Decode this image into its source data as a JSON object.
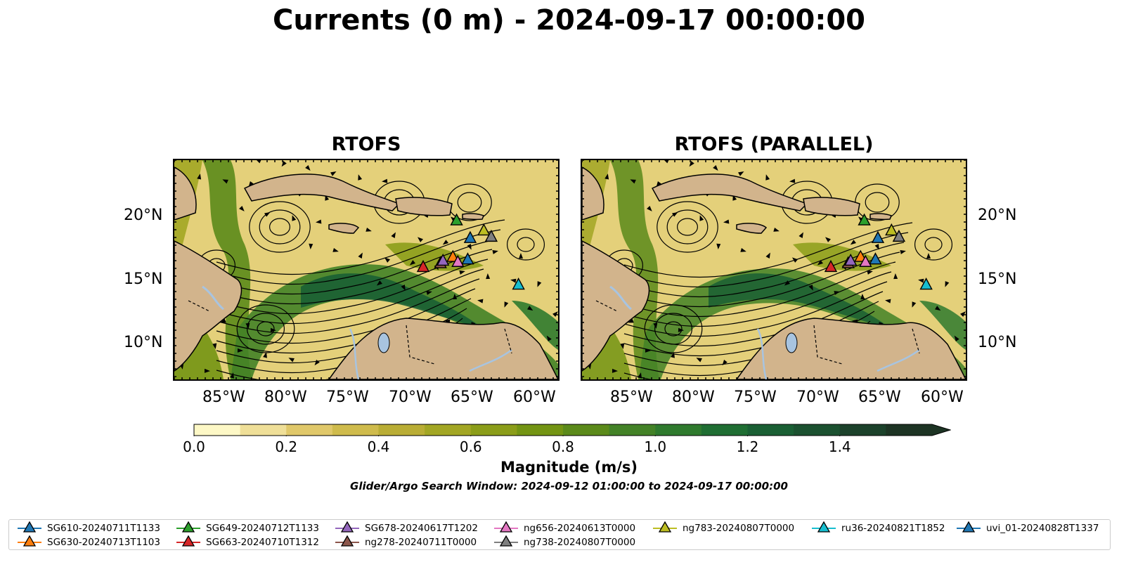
{
  "title": "Currents (0 m) - 2024-09-17 00:00:00",
  "panels": [
    {
      "title": "RTOFS"
    },
    {
      "title": "RTOFS (PARALLEL)"
    }
  ],
  "axes": {
    "lat_labels": [
      "20°N",
      "15°N",
      "10°N"
    ],
    "lon_labels": [
      "85°W",
      "80°W",
      "75°W",
      "70°W",
      "65°W",
      "60°W"
    ]
  },
  "colorbar": {
    "label": "Magnitude (m/s)",
    "ticks": [
      "0.0",
      "0.2",
      "0.4",
      "0.6",
      "0.8",
      "1.0",
      "1.2",
      "1.4"
    ],
    "range": [
      0.0,
      1.6
    ],
    "extend": "max",
    "colors": [
      "#fdf8c6",
      "#efdf98",
      "#e0c86a",
      "#cfbb4c",
      "#b9ad35",
      "#a2a624",
      "#8b9d19",
      "#739413",
      "#5b8a1a",
      "#438227",
      "#2f7a2e",
      "#1f6e33",
      "#1a5f34",
      "#1b5130",
      "#1c422b",
      "#1d3424"
    ]
  },
  "search_window": "Glider/Argo Search Window: 2024-09-12 01:00:00 to 2024-09-17 00:00:00",
  "colors": {
    "land": "#d2b48c",
    "water": "#a8c4e0"
  },
  "legend": [
    {
      "label": "SG610-20240711T1133",
      "color": "#1f77b4"
    },
    {
      "label": "SG630-20240713T1103",
      "color": "#ff7f0e"
    },
    {
      "label": "SG649-20240712T1133",
      "color": "#2ca02c"
    },
    {
      "label": "SG663-20240710T1312",
      "color": "#d62728"
    },
    {
      "label": "SG678-20240617T1202",
      "color": "#9467bd"
    },
    {
      "label": "ng278-20240711T0000",
      "color": "#8c564b"
    },
    {
      "label": "ng656-20240613T0000",
      "color": "#e377c2"
    },
    {
      "label": "ng738-20240807T0000",
      "color": "#7f7f7f"
    },
    {
      "label": "ng783-20240807T0000",
      "color": "#bcbd22"
    },
    {
      "label": "ru36-20240821T1852",
      "color": "#17becf"
    },
    {
      "label": "uvi_01-20240828T1337",
      "color": "#1f77b4"
    }
  ],
  "markers": [
    {
      "name": "SG649",
      "lon": -66.2,
      "lat": 19.6,
      "color": "#2ca02c"
    },
    {
      "name": "ng783",
      "lon": -64.0,
      "lat": 18.8,
      "color": "#bcbd22"
    },
    {
      "name": "ng738",
      "lon": -63.4,
      "lat": 18.3,
      "color": "#7f7f7f"
    },
    {
      "name": "SG610",
      "lon": -65.1,
      "lat": 18.2,
      "color": "#1f77b4"
    },
    {
      "name": "SG630",
      "lon": -66.5,
      "lat": 16.7,
      "color": "#ff7f0e"
    },
    {
      "name": "uvi_01",
      "lon": -65.3,
      "lat": 16.5,
      "color": "#1f77b4"
    },
    {
      "name": "ng656",
      "lon": -66.1,
      "lat": 16.3,
      "color": "#e377c2"
    },
    {
      "name": "ng278",
      "lon": -67.5,
      "lat": 16.2,
      "color": "#8c564b"
    },
    {
      "name": "SG678",
      "lon": -67.3,
      "lat": 16.4,
      "color": "#9467bd"
    },
    {
      "name": "SG663",
      "lon": -68.9,
      "lat": 15.9,
      "color": "#d62728"
    },
    {
      "name": "ru36",
      "lon": -61.2,
      "lat": 14.5,
      "color": "#17becf"
    }
  ],
  "extent": {
    "lon": [
      -89,
      -58
    ],
    "lat": [
      7,
      24.4
    ]
  }
}
